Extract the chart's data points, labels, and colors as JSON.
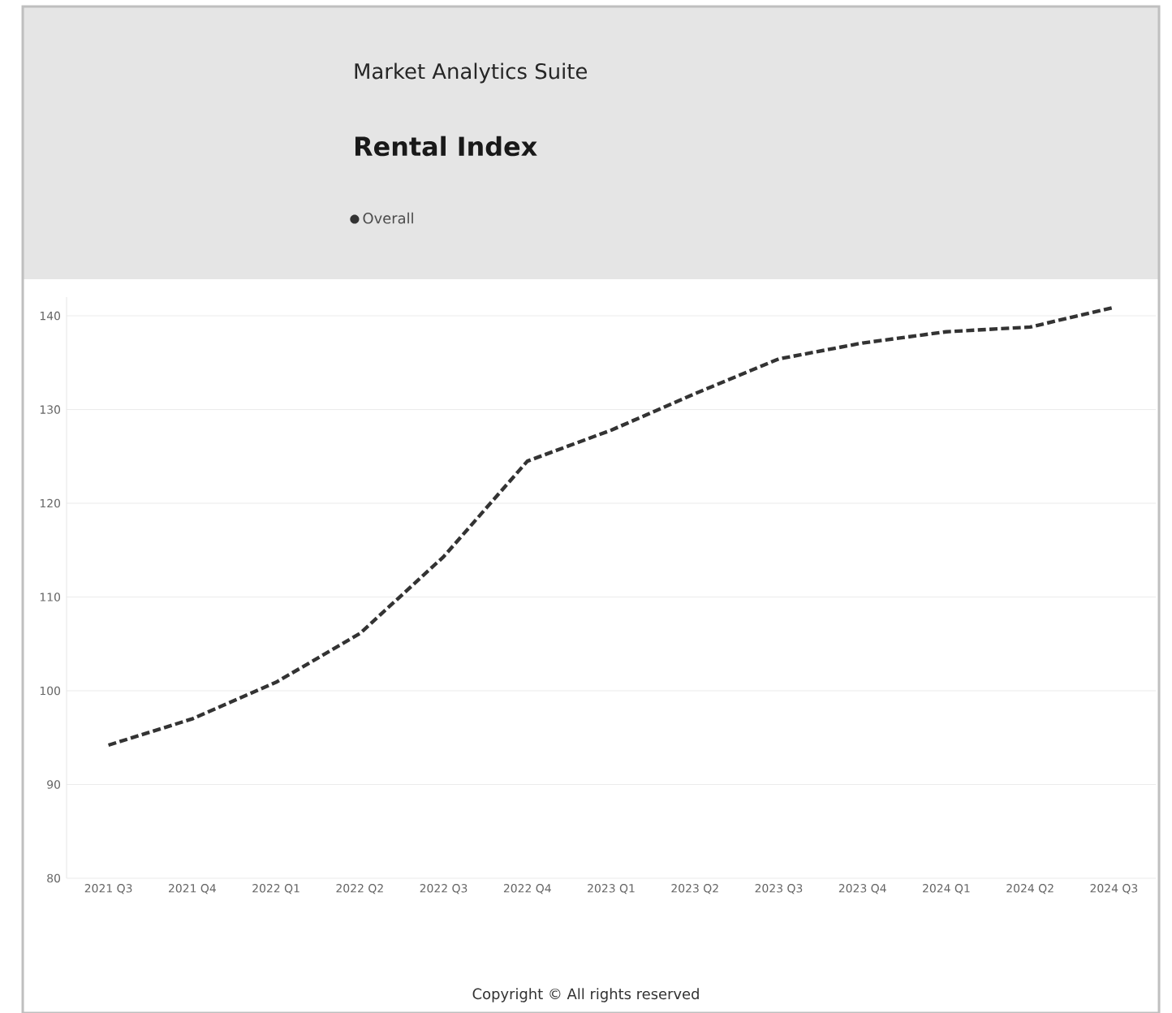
{
  "chart_data": {
    "type": "line",
    "title": "Rental Index",
    "subtitle": "Market Analytics Suite",
    "categories": [
      "2021 Q3",
      "2021 Q4",
      "2022 Q1",
      "2022 Q2",
      "2022 Q3",
      "2022 Q4",
      "2023 Q1",
      "2023 Q2",
      "2023 Q3",
      "2023 Q4",
      "2024 Q1",
      "2024 Q2",
      "2024 Q3"
    ],
    "series": [
      {
        "name": "Overall",
        "color": "#333333",
        "values": [
          94.2,
          97.0,
          100.9,
          106.1,
          114.3,
          124.5,
          127.8,
          131.7,
          135.4,
          137.1,
          138.3,
          138.8,
          140.9
        ]
      }
    ],
    "ylim": [
      80,
      142
    ],
    "yticks": [
      80,
      90,
      100,
      110,
      120,
      130,
      140
    ],
    "grid": "y",
    "legend": "top left",
    "line_style": "dashed",
    "marker": "none",
    "annotations": [
      "Copyright © All rights reserved"
    ]
  }
}
